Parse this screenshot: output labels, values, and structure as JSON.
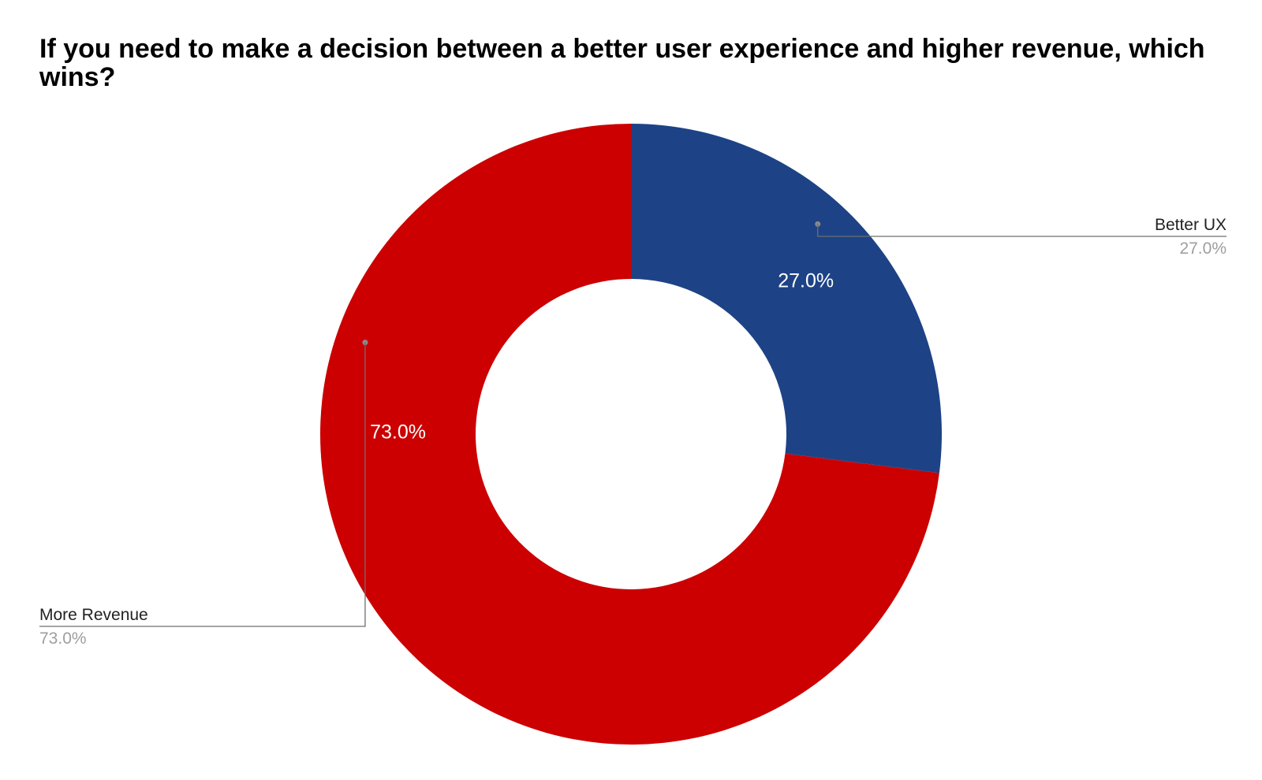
{
  "chart_data": {
    "type": "pie",
    "donut": true,
    "title": "If you need to make a decision between a better user experience and higher revenue, which wins?",
    "slices": [
      {
        "name": "Better UX",
        "value": 27.0,
        "label": "27.0%",
        "color": "#1d4386"
      },
      {
        "name": "More Revenue",
        "value": 73.0,
        "label": "73.0%",
        "color": "#cc0000"
      }
    ],
    "start_angle_deg": 0,
    "direction": "clockwise",
    "legend": "callout labels outside slices"
  }
}
